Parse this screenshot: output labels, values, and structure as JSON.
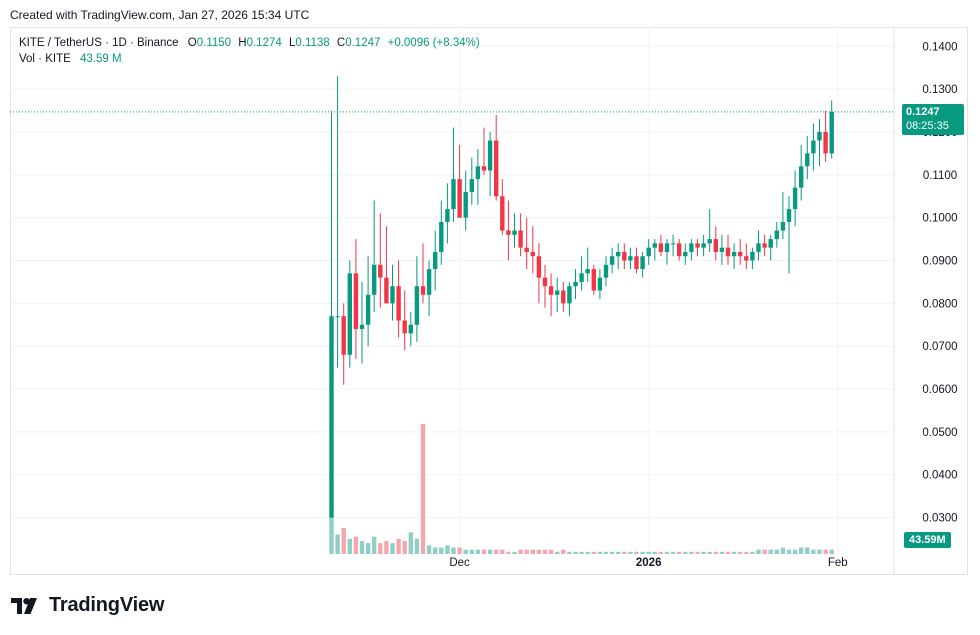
{
  "caption": "Created with TradingView.com, Jan 27, 2026 15:34 UTC",
  "legend": {
    "symbol": "KITE / TetherUS · 1D · Binance",
    "o_label": "O",
    "o": "0.1150",
    "h_label": "H",
    "h": "0.1274",
    "l_label": "L",
    "l": "0.1138",
    "c_label": "C",
    "c": "0.1247",
    "change": "+0.0096 (+8.34%)",
    "vol_label": "Vol · KITE",
    "vol": "43.59 M"
  },
  "price_badge": {
    "price": "0.1247",
    "countdown": "08:25:35"
  },
  "volume_badge": "43.59M",
  "brand": "TradingView",
  "colors": {
    "up": "#089981",
    "down": "#f23645",
    "up_vol": "#8fcfc4",
    "down_vol": "#f4a8ad",
    "grid": "#f0f3fa"
  },
  "chart_data": {
    "type": "candlestick",
    "y_ticks": [
      "0.1400",
      "0.1300",
      "0.1200",
      "0.1100",
      "0.1000",
      "0.0900",
      "0.0800",
      "0.0700",
      "0.0600",
      "0.0500",
      "0.0400",
      "0.0300"
    ],
    "x_ticks": [
      {
        "label": "Dec",
        "day": 21,
        "bold": false
      },
      {
        "label": "2026",
        "day": 52,
        "bold": true
      },
      {
        "label": "Feb",
        "day": 83,
        "bold": false
      }
    ],
    "ylim": [
      0.0215,
      0.1445
    ],
    "last_price": 0.1247,
    "candles": [
      [
        0.03,
        0.125,
        0.03,
        0.077,
        18
      ],
      [
        0.077,
        0.133,
        0.065,
        0.077,
        9
      ],
      [
        0.077,
        0.08,
        0.061,
        0.068,
        12
      ],
      [
        0.068,
        0.09,
        0.065,
        0.087,
        7
      ],
      [
        0.087,
        0.095,
        0.067,
        0.074,
        8
      ],
      [
        0.074,
        0.085,
        0.066,
        0.075,
        6
      ],
      [
        0.075,
        0.091,
        0.07,
        0.082,
        5
      ],
      [
        0.082,
        0.104,
        0.078,
        0.089,
        8
      ],
      [
        0.089,
        0.101,
        0.079,
        0.086,
        5
      ],
      [
        0.086,
        0.098,
        0.081,
        0.08,
        6
      ],
      [
        0.08,
        0.089,
        0.076,
        0.084,
        5
      ],
      [
        0.084,
        0.09,
        0.072,
        0.076,
        7
      ],
      [
        0.076,
        0.083,
        0.069,
        0.073,
        6
      ],
      [
        0.073,
        0.078,
        0.07,
        0.075,
        10
      ],
      [
        0.075,
        0.091,
        0.071,
        0.084,
        7
      ],
      [
        0.084,
        0.094,
        0.08,
        0.082,
        60
      ],
      [
        0.082,
        0.09,
        0.077,
        0.088,
        4
      ],
      [
        0.088,
        0.097,
        0.083,
        0.092,
        3
      ],
      [
        0.092,
        0.104,
        0.089,
        0.099,
        3
      ],
      [
        0.099,
        0.108,
        0.094,
        0.102,
        4
      ],
      [
        0.102,
        0.121,
        0.099,
        0.109,
        3
      ],
      [
        0.109,
        0.117,
        0.101,
        0.1,
        3
      ],
      [
        0.1,
        0.111,
        0.097,
        0.106,
        2
      ],
      [
        0.106,
        0.114,
        0.103,
        0.109,
        2
      ],
      [
        0.109,
        0.116,
        0.103,
        0.112,
        2
      ],
      [
        0.112,
        0.121,
        0.11,
        0.111,
        2
      ],
      [
        0.111,
        0.12,
        0.105,
        0.118,
        2
      ],
      [
        0.118,
        0.124,
        0.104,
        0.105,
        2
      ],
      [
        0.105,
        0.109,
        0.096,
        0.097,
        2
      ],
      [
        0.097,
        0.104,
        0.09,
        0.096,
        1
      ],
      [
        0.096,
        0.101,
        0.093,
        0.097,
        1
      ],
      [
        0.097,
        0.101,
        0.091,
        0.093,
        2
      ],
      [
        0.093,
        0.1,
        0.088,
        0.092,
        2
      ],
      [
        0.092,
        0.098,
        0.087,
        0.091,
        2
      ],
      [
        0.091,
        0.094,
        0.08,
        0.086,
        2
      ],
      [
        0.086,
        0.089,
        0.079,
        0.084,
        2
      ],
      [
        0.084,
        0.087,
        0.077,
        0.082,
        2
      ],
      [
        0.082,
        0.086,
        0.078,
        0.083,
        1
      ],
      [
        0.083,
        0.085,
        0.078,
        0.08,
        2
      ],
      [
        0.08,
        0.085,
        0.077,
        0.084,
        1
      ],
      [
        0.084,
        0.088,
        0.081,
        0.085,
        1
      ],
      [
        0.085,
        0.091,
        0.083,
        0.087,
        1
      ],
      [
        0.087,
        0.093,
        0.085,
        0.088,
        1
      ],
      [
        0.088,
        0.089,
        0.082,
        0.083,
        1
      ],
      [
        0.083,
        0.088,
        0.081,
        0.086,
        1
      ],
      [
        0.086,
        0.091,
        0.084,
        0.089,
        1
      ],
      [
        0.089,
        0.093,
        0.087,
        0.091,
        1
      ],
      [
        0.091,
        0.094,
        0.088,
        0.092,
        1
      ],
      [
        0.092,
        0.094,
        0.088,
        0.09,
        1
      ],
      [
        0.09,
        0.093,
        0.088,
        0.091,
        1
      ],
      [
        0.091,
        0.093,
        0.087,
        0.088,
        1
      ],
      [
        0.088,
        0.092,
        0.086,
        0.091,
        1
      ],
      [
        0.091,
        0.095,
        0.089,
        0.093,
        1
      ],
      [
        0.093,
        0.095,
        0.09,
        0.094,
        1
      ],
      [
        0.094,
        0.096,
        0.091,
        0.092,
        1
      ],
      [
        0.092,
        0.095,
        0.089,
        0.094,
        1
      ],
      [
        0.094,
        0.096,
        0.091,
        0.094,
        1
      ],
      [
        0.094,
        0.095,
        0.09,
        0.091,
        1
      ],
      [
        0.091,
        0.094,
        0.089,
        0.092,
        1
      ],
      [
        0.092,
        0.095,
        0.09,
        0.094,
        1
      ],
      [
        0.094,
        0.095,
        0.091,
        0.093,
        1
      ],
      [
        0.093,
        0.096,
        0.091,
        0.094,
        1
      ],
      [
        0.094,
        0.102,
        0.092,
        0.095,
        1
      ],
      [
        0.095,
        0.098,
        0.09,
        0.092,
        1
      ],
      [
        0.092,
        0.096,
        0.089,
        0.093,
        1
      ],
      [
        0.093,
        0.096,
        0.089,
        0.091,
        1
      ],
      [
        0.091,
        0.094,
        0.088,
        0.092,
        1
      ],
      [
        0.092,
        0.095,
        0.089,
        0.091,
        1
      ],
      [
        0.091,
        0.094,
        0.088,
        0.09,
        1
      ],
      [
        0.09,
        0.093,
        0.088,
        0.092,
        1
      ],
      [
        0.092,
        0.097,
        0.09,
        0.094,
        2
      ],
      [
        0.094,
        0.096,
        0.091,
        0.093,
        2
      ],
      [
        0.093,
        0.096,
        0.09,
        0.095,
        2
      ],
      [
        0.095,
        0.099,
        0.093,
        0.097,
        2
      ],
      [
        0.097,
        0.106,
        0.095,
        0.099,
        3
      ],
      [
        0.099,
        0.105,
        0.087,
        0.102,
        2
      ],
      [
        0.102,
        0.111,
        0.098,
        0.107,
        2
      ],
      [
        0.107,
        0.117,
        0.104,
        0.112,
        3
      ],
      [
        0.112,
        0.119,
        0.109,
        0.115,
        3
      ],
      [
        0.115,
        0.122,
        0.111,
        0.118,
        2
      ],
      [
        0.118,
        0.123,
        0.112,
        0.12,
        2
      ],
      [
        0.12,
        0.125,
        0.113,
        0.115,
        2
      ],
      [
        0.115,
        0.1274,
        0.1138,
        0.1247,
        2
      ]
    ]
  }
}
